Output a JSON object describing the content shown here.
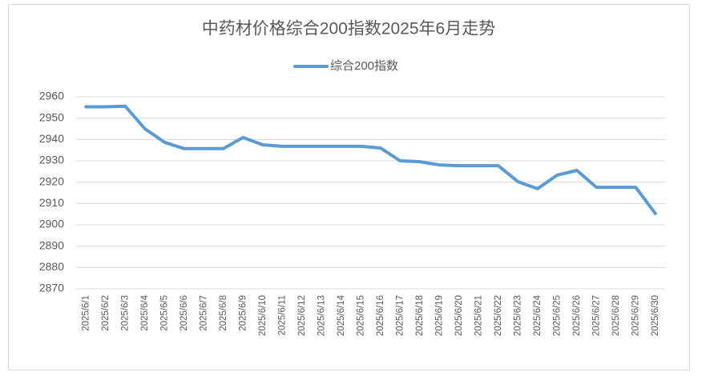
{
  "chart_data": {
    "type": "line",
    "title": "中药材价格综合200指数2025年6月走势",
    "categories": [
      "2025/6/1",
      "2025/6/2",
      "2025/6/3",
      "2025/6/4",
      "2025/6/5",
      "2025/6/6",
      "2025/6/7",
      "2025/6/8",
      "2025/6/9",
      "2025/6/10",
      "2025/6/11",
      "2025/6/12",
      "2025/6/13",
      "2025/6/14",
      "2025/6/15",
      "2025/6/16",
      "2025/6/17",
      "2025/6/18",
      "2025/6/19",
      "2025/6/20",
      "2025/6/21",
      "2025/6/22",
      "2025/6/23",
      "2025/6/24",
      "2025/6/25",
      "2025/6/26",
      "2025/6/27",
      "2025/6/28",
      "2025/6/29",
      "2025/6/30"
    ],
    "series": [
      {
        "name": "综合200指数",
        "color": "#5b9bd5",
        "values": [
          2955.3,
          2955.3,
          2955.6,
          2945,
          2938.7,
          2935.7,
          2935.7,
          2935.7,
          2940.9,
          2937.5,
          2936.8,
          2936.8,
          2936.8,
          2936.8,
          2936.8,
          2936,
          2930,
          2929.6,
          2928.1,
          2927.7,
          2927.7,
          2927.7,
          2920.2,
          2916.9,
          2923.3,
          2925.5,
          2917.6,
          2917.6,
          2917.6,
          2905.3
        ]
      }
    ],
    "ylim": [
      2870,
      2960
    ],
    "yticks": [
      2870,
      2880,
      2890,
      2900,
      2910,
      2920,
      2930,
      2940,
      2950,
      2960
    ],
    "grid": true,
    "legend": "top"
  }
}
